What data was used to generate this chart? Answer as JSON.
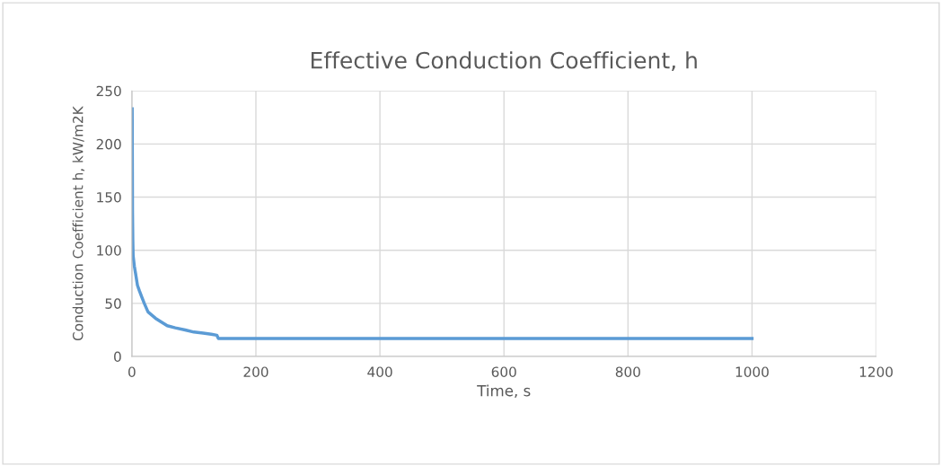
{
  "chart_data": {
    "type": "line",
    "title": "Effective Conduction Coefficient, h",
    "xlabel": "Time, s",
    "ylabel": "Conduction Coefficient h, kW/m2K",
    "series": [
      {
        "color": "#5b9bd5",
        "x": [
          0.5,
          1,
          1.5,
          2,
          4,
          6,
          9,
          12,
          16,
          20,
          26,
          32,
          38,
          46,
          57,
          70,
          86,
          100,
          115,
          128,
          137,
          139.5,
          160,
          300,
          500,
          700,
          1000
        ],
        "values": [
          233,
          137,
          110,
          95,
          85,
          78,
          67,
          62,
          56,
          50,
          42,
          39,
          36,
          33,
          29,
          27,
          25,
          23,
          22,
          21,
          20,
          17,
          17,
          17,
          17,
          17,
          17
        ]
      }
    ],
    "xlim": [
      0,
      1200
    ],
    "xticks": [
      0,
      200,
      400,
      600,
      800,
      1000,
      1200
    ],
    "ylim": [
      0,
      250
    ],
    "yticks": [
      0,
      50,
      100,
      150,
      200,
      250
    ],
    "grid": true,
    "marker": "none",
    "line_style": "solid"
  }
}
